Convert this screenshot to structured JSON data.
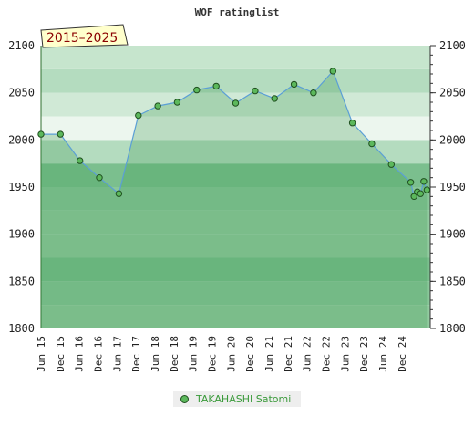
{
  "chart_data": {
    "type": "line",
    "title": "WOF ratinglist",
    "period_badge": "2015–2025",
    "ylim": [
      1800,
      2100
    ],
    "y_ticks": [
      "1800",
      "1850",
      "1900",
      "1950",
      "2000",
      "2050",
      "2100"
    ],
    "x_tick_labels": [
      "Jun 15",
      "Dec 15",
      "Jun 16",
      "Dec 16",
      "Jun 17",
      "Dec 17",
      "Jun 18",
      "Dec 18",
      "Jun 19",
      "Dec 19",
      "Jun 20",
      "Dec 20",
      "Jun 21",
      "Dec 21",
      "Jun 22",
      "Dec 22",
      "Jun 23",
      "Dec 23",
      "Jun 24",
      "Dec 24"
    ],
    "x_range": [
      "2015-06",
      "2025-06"
    ],
    "legend_placement": "bottom",
    "series": [
      {
        "name": "TAKAHASHI Satomi",
        "color": "#5cb85c",
        "points": [
          {
            "x": "2015-06",
            "y": 2006
          },
          {
            "x": "2015-12",
            "y": 2006
          },
          {
            "x": "2016-06",
            "y": 1978
          },
          {
            "x": "2016-12",
            "y": 1960
          },
          {
            "x": "2017-06",
            "y": 1943
          },
          {
            "x": "2017-12",
            "y": 2026
          },
          {
            "x": "2018-06",
            "y": 2036
          },
          {
            "x": "2018-12",
            "y": 2040
          },
          {
            "x": "2019-06",
            "y": 2053
          },
          {
            "x": "2019-12",
            "y": 2057
          },
          {
            "x": "2020-06",
            "y": 2039
          },
          {
            "x": "2020-12",
            "y": 2052
          },
          {
            "x": "2021-06",
            "y": 2044
          },
          {
            "x": "2021-12",
            "y": 2059
          },
          {
            "x": "2022-06",
            "y": 2050
          },
          {
            "x": "2022-12",
            "y": 2073
          },
          {
            "x": "2023-06",
            "y": 2018
          },
          {
            "x": "2023-12",
            "y": 1996
          },
          {
            "x": "2024-06",
            "y": 1974
          },
          {
            "x": "2024-12",
            "y": 1955
          },
          {
            "x": "2025-01",
            "y": 1940
          },
          {
            "x": "2025-02",
            "y": 1945
          },
          {
            "x": "2025-03",
            "y": 1943
          },
          {
            "x": "2025-04",
            "y": 1956
          },
          {
            "x": "2025-05",
            "y": 1947
          }
        ]
      }
    ]
  }
}
